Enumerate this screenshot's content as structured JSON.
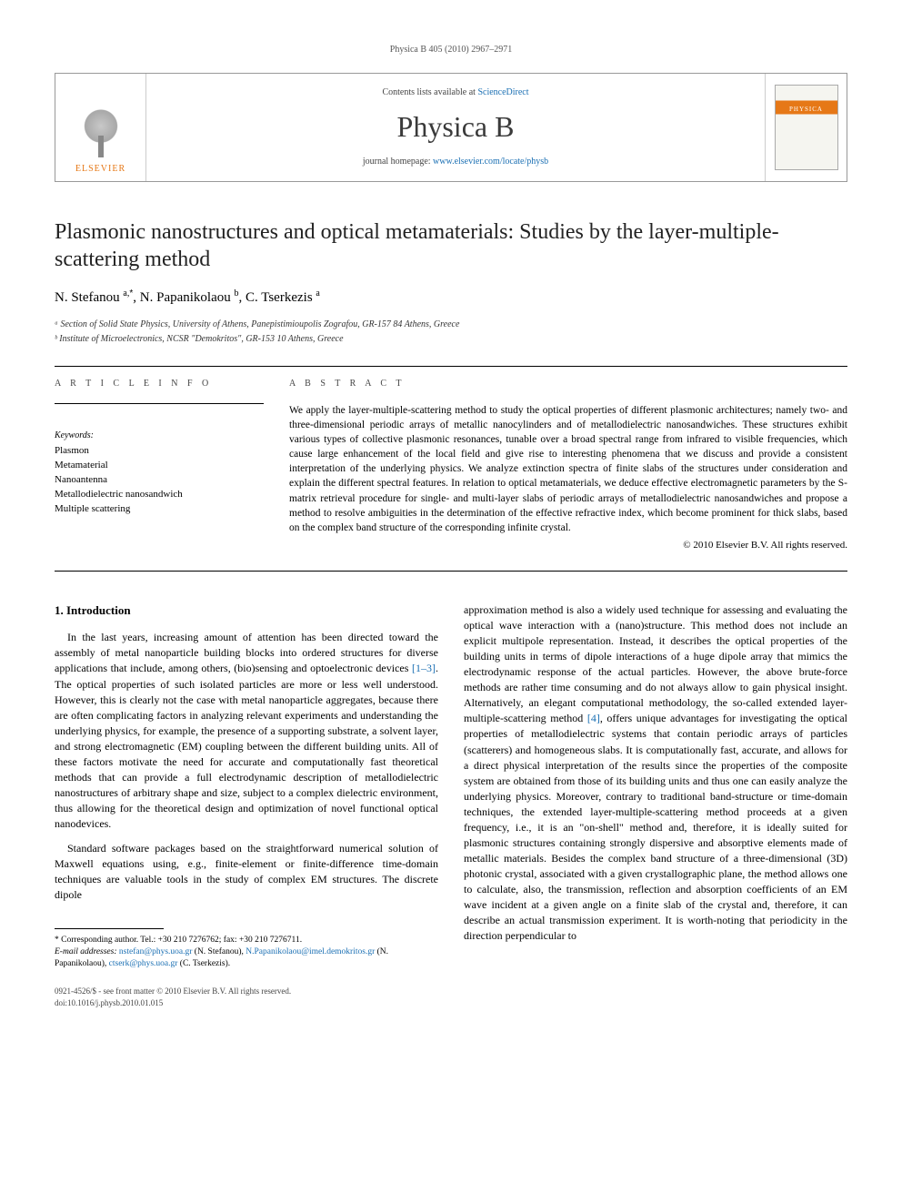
{
  "running_header": "Physica B 405 (2010) 2967–2971",
  "banner": {
    "publisher_word": "ELSEVIER",
    "contents_prefix": "Contents lists available at ",
    "contents_link_text": "ScienceDirect",
    "journal_name": "Physica B",
    "homepage_prefix": "journal homepage: ",
    "homepage_link_text": "www.elsevier.com/locate/physb"
  },
  "title": "Plasmonic nanostructures and optical metamaterials: Studies by the layer-multiple-scattering method",
  "authors_html": "N. Stefanou <sup>a,</sup><sup class=\"corr-star\">*</sup>, N. Papanikolaou <sup>b</sup>, C. Tserkezis <sup>a</sup>",
  "affiliations": [
    "ᵃ Section of Solid State Physics, University of Athens, Panepistimioupolis Zografou, GR-157 84 Athens, Greece",
    "ᵇ Institute of Microelectronics, NCSR \"Demokritos\", GR-153 10 Athens, Greece"
  ],
  "info_head": "A R T I C L E   I N F O",
  "abs_head": "A B S T R A C T",
  "keywords_head": "Keywords:",
  "keywords": [
    "Plasmon",
    "Metamaterial",
    "Nanoantenna",
    "Metallodielectric nanosandwich",
    "Multiple scattering"
  ],
  "abstract": "We apply the layer-multiple-scattering method to study the optical properties of different plasmonic architectures; namely two- and three-dimensional periodic arrays of metallic nanocylinders and of metallodielectric nanosandwiches. These structures exhibit various types of collective plasmonic resonances, tunable over a broad spectral range from infrared to visible frequencies, which cause large enhancement of the local field and give rise to interesting phenomena that we discuss and provide a consistent interpretation of the underlying physics. We analyze extinction spectra of finite slabs of the structures under consideration and explain the different spectral features. In relation to optical metamaterials, we deduce effective electromagnetic parameters by the S-matrix retrieval procedure for single- and multi-layer slabs of periodic arrays of metallodielectric nanosandwiches and propose a method to resolve ambiguities in the determination of the effective refractive index, which become prominent for thick slabs, based on the complex band structure of the corresponding infinite crystal.",
  "copyright": "© 2010 Elsevier B.V. All rights reserved.",
  "section1_head": "1.  Introduction",
  "col1_p1": "In the last years, increasing amount of attention has been directed toward the assembly of metal nanoparticle building blocks into ordered structures for diverse applications that include, among others, (bio)sensing and optoelectronic devices [1–3]. The optical properties of such isolated particles are more or less well understood. However, this is clearly not the case with metal nanoparticle aggregates, because there are often complicating factors in analyzing relevant experiments and understanding the underlying physics, for example, the presence of a supporting substrate, a solvent layer, and strong electromagnetic (EM) coupling between the different building units. All of these factors motivate the need for accurate and computationally fast theoretical methods that can provide a full electrodynamic description of metallodielectric nanostructures of arbitrary shape and size, subject to a complex dielectric environment, thus allowing for the theoretical design and optimization of novel functional optical nanodevices.",
  "col1_p2": "Standard software packages based on the straightforward numerical solution of Maxwell equations using, e.g., finite-element or finite-difference time-domain techniques are valuable tools in the study of complex EM structures. The discrete dipole",
  "col2_p1": "approximation method is also a widely used technique for assessing and evaluating the optical wave interaction with a (nano)structure. This method does not include an explicit multipole representation. Instead, it describes the optical properties of the building units in terms of dipole interactions of a huge dipole array that mimics the electrodynamic response of the actual particles. However, the above brute-force methods are rather time consuming and do not always allow to gain physical insight. Alternatively, an elegant computational methodology, the so-called extended layer-multiple-scattering method [4], offers unique advantages for investigating the optical properties of metallodielectric systems that contain periodic arrays of particles (scatterers) and homogeneous slabs. It is computationally fast, accurate, and allows for a direct physical interpretation of the results since the properties of the composite system are obtained from those of its building units and thus one can easily analyze the underlying physics. Moreover, contrary to traditional band-structure or time-domain techniques, the extended layer-multiple-scattering method proceeds at a given frequency, i.e., it is an \"on-shell\" method and, therefore, it is ideally suited for plasmonic structures containing strongly dispersive and absorptive elements made of metallic materials. Besides the complex band structure of a three-dimensional (3D) photonic crystal, associated with a given crystallographic plane, the method allows one to calculate, also, the transmission, reflection and absorption coefficients of an EM wave incident at a given angle on a finite slab of the crystal and, therefore, it can describe an actual transmission experiment. It is worth-noting that periodicity in the direction perpendicular to",
  "footnote_corr": "* Corresponding author. Tel.: +30 210 7276762; fax: +30 210 7276711.",
  "footnote_email_label": "E-mail addresses:",
  "footnote_emails": " nstefan@phys.uoa.gr (N. Stefanou), N.Papanikolaou@imel.demokritos.gr (N. Papanikolaou), ctserk@phys.uoa.gr (C. Tserkezis).",
  "footer_line1": "0921-4526/$ - see front matter © 2010 Elsevier B.V. All rights reserved.",
  "footer_line2": "doi:10.1016/j.physb.2010.01.015",
  "colors": {
    "link": "#1a6fb3",
    "elsevier_orange": "#e67817",
    "text": "#000000",
    "muted": "#555555"
  }
}
